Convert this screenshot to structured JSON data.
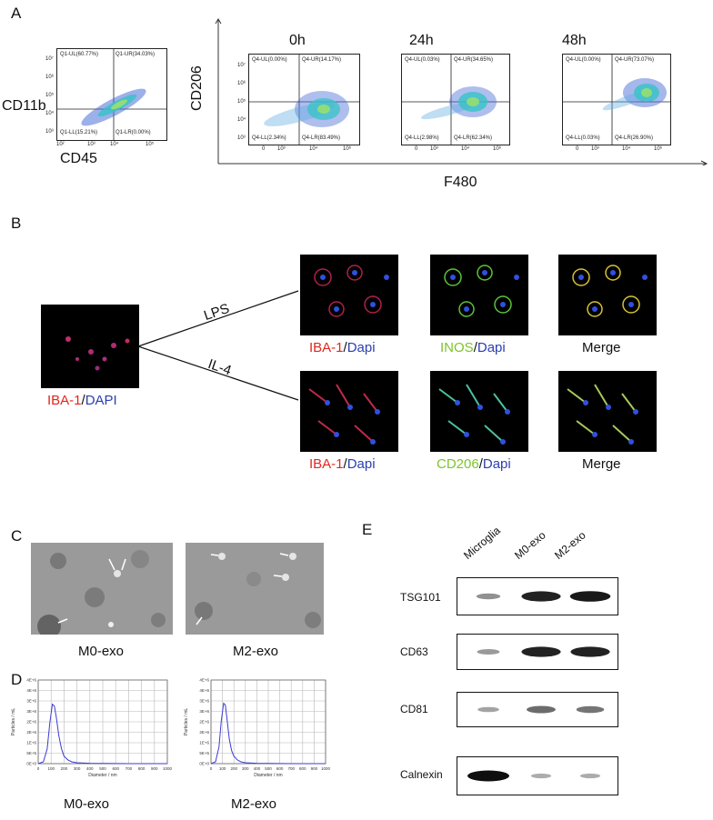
{
  "panels": {
    "a": "A",
    "b": "B",
    "c": "C",
    "d": "D",
    "e": "E"
  },
  "panelA": {
    "plot1": {
      "ylabel": "CD11b",
      "xlabel": "CD45",
      "quadrants": {
        "ul": "Q1-UL(60.77%)",
        "ur": "Q1-UR(34.03%)",
        "ll": "Q1-LL(15.21%)",
        "lr": "Q1-LR(0.00%)"
      },
      "yticks": [
        "10⁷",
        "10⁶",
        "10⁵",
        "10⁴",
        "10³"
      ],
      "xticks": [
        "10²",
        "10³",
        "10⁴",
        "10⁵"
      ]
    },
    "ylabel": "CD206",
    "xlabel": "F480",
    "timepoints": [
      {
        "title": "0h",
        "ul": "Q4-UL(0.00%)",
        "ur": "Q4-UR(14.17%)",
        "ll": "Q4-LL(2.34%)",
        "lr": "Q4-LR(83.49%)"
      },
      {
        "title": "24h",
        "ul": "Q4-UL(0.03%)",
        "ur": "Q4-UR(34.65%)",
        "ll": "Q4-LL(2.98%)",
        "lr": "Q4-LR(62.34%)"
      },
      {
        "title": "48h",
        "ul": "Q4-UL(0.00%)",
        "ur": "Q4-UR(73.07%)",
        "ll": "Q4-LL(0.03%)",
        "lr": "Q4-LR(26.90%)"
      }
    ],
    "yticks": [
      "10⁷",
      "10⁶",
      "10⁵",
      "10⁴",
      "10³"
    ],
    "xticks": [
      "0",
      "10³",
      "10⁴",
      "10⁶"
    ]
  },
  "panelB": {
    "left": {
      "stain": "IBA-1",
      "sep": "/",
      "dapi": "DAPI"
    },
    "lps": "LPS",
    "il4": "IL-4",
    "row1": [
      {
        "stain": "IBA-1",
        "sep": "/",
        "dapi": "Dapi"
      },
      {
        "stain": "INOS",
        "sep": "/",
        "dapi": "Dapi"
      },
      {
        "merge": "Merge"
      }
    ],
    "row2": [
      {
        "stain": "IBA-1",
        "sep": "/",
        "dapi": "Dapi"
      },
      {
        "stain": "CD206",
        "sep": "/",
        "dapi": "Dapi"
      },
      {
        "merge": "Merge"
      }
    ]
  },
  "panelC": {
    "left": "M0-exo",
    "right": "M2-exo"
  },
  "panelD": {
    "charts": [
      {
        "caption": "M0-exo",
        "ylabel": "Particles / mL",
        "xlabel": "Diameter / nm",
        "yticks": [
          "4E+6",
          "4E+6",
          "3E+6",
          "3E+6",
          "2E+6",
          "2E+6",
          "1E+6",
          "5E+5",
          "0E+0"
        ],
        "xticks": [
          "0",
          "100",
          "200",
          "300",
          "400",
          "500",
          "600",
          "700",
          "800",
          "900",
          "1000"
        ]
      },
      {
        "caption": "M2-exo",
        "ylabel": "Particles / mL",
        "xlabel": "Diameter / nm",
        "yticks": [
          "4E+6",
          "4E+6",
          "3E+6",
          "3E+6",
          "2E+6",
          "2E+6",
          "1E+6",
          "5E+5",
          "0E+0"
        ],
        "xticks": [
          "0",
          "100",
          "200",
          "300",
          "400",
          "500",
          "600",
          "700",
          "800",
          "900",
          "1000"
        ]
      }
    ]
  },
  "chart_data": [
    {
      "type": "line",
      "caption": "M0-exo",
      "xlabel": "Diameter / nm",
      "ylabel": "Particles / mL",
      "xlim": [
        0,
        1000
      ],
      "ylim": [
        0,
        4500000
      ],
      "grid": true,
      "x": [
        0,
        40,
        70,
        90,
        110,
        125,
        140,
        160,
        180,
        200,
        230,
        260,
        300,
        400,
        500,
        700,
        1000
      ],
      "y": [
        0,
        100000,
        800000,
        2200000,
        3200000,
        3100000,
        2500000,
        1500000,
        800000,
        400000,
        200000,
        100000,
        50000,
        20000,
        10000,
        0,
        0
      ]
    },
    {
      "type": "line",
      "caption": "M2-exo",
      "xlabel": "Diameter / nm",
      "ylabel": "Particles / mL",
      "xlim": [
        0,
        1000
      ],
      "ylim": [
        0,
        4500000
      ],
      "grid": true,
      "x": [
        0,
        40,
        70,
        90,
        110,
        125,
        140,
        160,
        180,
        200,
        230,
        260,
        300,
        400,
        500,
        700,
        1000
      ],
      "y": [
        0,
        100000,
        900000,
        2300000,
        3250000,
        3150000,
        2400000,
        1300000,
        700000,
        400000,
        200000,
        100000,
        50000,
        20000,
        10000,
        0,
        0
      ]
    }
  ],
  "panelE": {
    "lanes": [
      "Microglia",
      "M0-exo",
      "M2-exo"
    ],
    "blots": [
      {
        "label": "TSG101",
        "intensity": [
          0.3,
          0.9,
          0.95
        ]
      },
      {
        "label": "CD63",
        "intensity": [
          0.25,
          0.9,
          0.9
        ]
      },
      {
        "label": "CD81",
        "intensity": [
          0.2,
          0.5,
          0.45
        ]
      },
      {
        "label": "Calnexin",
        "intensity": [
          1.0,
          0.15,
          0.15
        ]
      }
    ]
  }
}
